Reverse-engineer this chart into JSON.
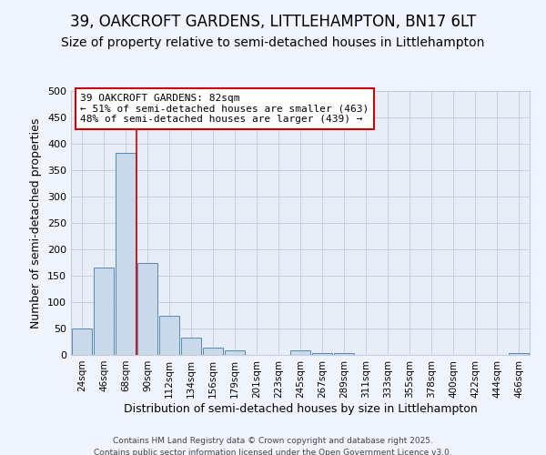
{
  "title1": "39, OAKCROFT GARDENS, LITTLEHAMPTON, BN17 6LT",
  "title2": "Size of property relative to semi-detached houses in Littlehampton",
  "xlabel": "Distribution of semi-detached houses by size in Littlehampton",
  "ylabel": "Number of semi-detached properties",
  "categories": [
    "24sqm",
    "46sqm",
    "68sqm",
    "90sqm",
    "112sqm",
    "134sqm",
    "156sqm",
    "179sqm",
    "201sqm",
    "223sqm",
    "245sqm",
    "267sqm",
    "289sqm",
    "311sqm",
    "333sqm",
    "355sqm",
    "378sqm",
    "400sqm",
    "422sqm",
    "444sqm",
    "466sqm"
  ],
  "values": [
    50,
    165,
    383,
    175,
    75,
    33,
    13,
    8,
    0,
    0,
    8,
    4,
    4,
    0,
    0,
    0,
    0,
    0,
    0,
    0,
    3
  ],
  "bar_color": "#c9d9ea",
  "bar_edge_color": "#5588bb",
  "vline_x_index": 2,
  "vline_color": "#cc0000",
  "annotation_text": "39 OAKCROFT GARDENS: 82sqm\n← 51% of semi-detached houses are smaller (463)\n48% of semi-detached houses are larger (439) →",
  "annotation_box_color": "#ffffff",
  "annotation_box_edge": "#cc0000",
  "ylim": [
    0,
    500
  ],
  "yticks": [
    0,
    50,
    100,
    150,
    200,
    250,
    300,
    350,
    400,
    450,
    500
  ],
  "background_color": "#f0f4ff",
  "plot_bg_color": "#e8eef8",
  "grid_color": "#c0cce0",
  "footer_line1": "Contains HM Land Registry data © Crown copyright and database right 2025.",
  "footer_line2": "Contains public sector information licensed under the Open Government Licence v3.0.",
  "title1_fontsize": 12,
  "title2_fontsize": 10,
  "annot_fontsize": 8
}
